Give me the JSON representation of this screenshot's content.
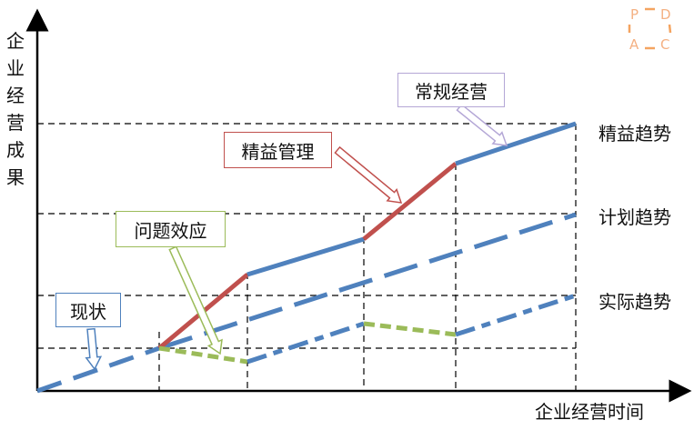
{
  "y_axis_label": "企业经营成果",
  "x_axis_label": "企业经营时间",
  "trend_labels": {
    "lean": "精益趋势",
    "plan": "计划趋势",
    "actual": "实际趋势"
  },
  "callouts": {
    "current": "现状",
    "problem": "问题效应",
    "lean_management": "精益管理",
    "regular_operation": "常规经营"
  },
  "logo": {
    "p": "P",
    "d": "D",
    "a": "A",
    "c": "C"
  },
  "colors": {
    "blue": "#4f81bd",
    "red": "#c0504d",
    "green": "#9bbb59",
    "purple": "#b4a7d6",
    "logo": "#f4b183"
  }
}
